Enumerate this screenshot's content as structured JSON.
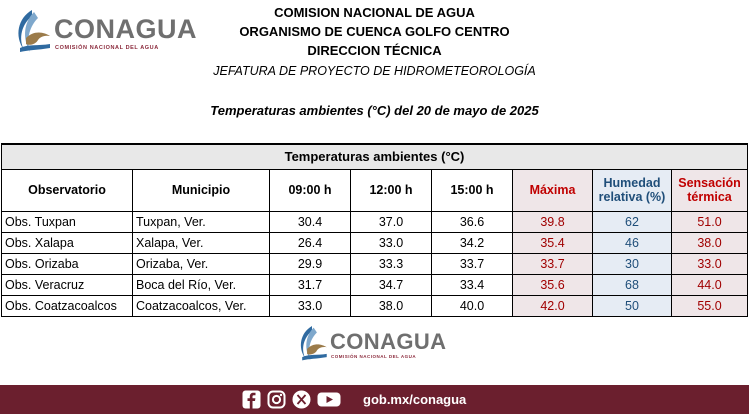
{
  "logo": {
    "name": "CONAGUA",
    "tagline": "COMISIÓN NACIONAL DEL AGUA"
  },
  "header": {
    "line1": "COMISION NACIONAL DE AGUA",
    "line2": "ORGANISMO DE CUENCA GOLFO CENTRO",
    "line3": "DIRECCION TÉCNICA",
    "line4": "JEFATURA DE PROYECTO DE HIDROMETEOROLOGÍA",
    "subtitle": "Temperaturas ambientes (°C) del 20 de mayo de 2025"
  },
  "table": {
    "group_title": "Temperaturas ambientes (°C)",
    "columns": [
      "Observatorio",
      "Municipio",
      "09:00 h",
      "12:00 h",
      "15:00 h",
      "Máxima",
      "Humedad relativa (%)",
      "Sensación térmica"
    ],
    "rows": [
      [
        "Obs. Tuxpan",
        "Tuxpan, Ver.",
        "30.4",
        "37.0",
        "36.6",
        "39.8",
        "62",
        "51.0"
      ],
      [
        "Obs. Xalapa",
        "Xalapa, Ver.",
        "26.4",
        "33.0",
        "34.2",
        "35.4",
        "46",
        "38.0"
      ],
      [
        "Obs. Orizaba",
        "Orizaba, Ver.",
        "29.9",
        "33.3",
        "33.7",
        "33.7",
        "30",
        "33.0"
      ],
      [
        "Obs. Veracruz",
        "Boca del Río, Ver.",
        "31.7",
        "34.7",
        "33.4",
        "35.6",
        "68",
        "44.0"
      ],
      [
        "Obs. Coatzacoalcos",
        "Coatzacoalcos, Ver.",
        "33.0",
        "38.0",
        "40.0",
        "42.0",
        "50",
        "55.0"
      ]
    ]
  },
  "footer": {
    "social_icons": [
      "facebook-icon",
      "instagram-icon",
      "x-icon",
      "youtube-icon"
    ],
    "website": "gob.mx/conagua",
    "bar_color": "#6b1f2e"
  }
}
